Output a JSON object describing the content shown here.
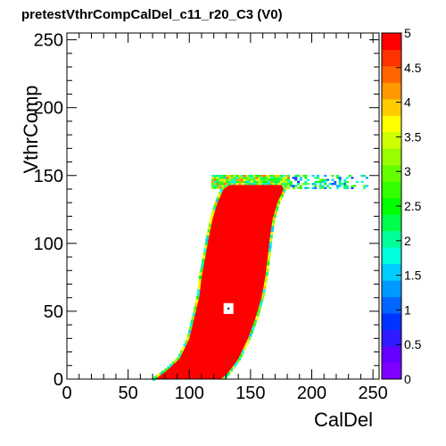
{
  "chart_data": {
    "type": "heatmap",
    "title": "pretestVthrCompCalDel_c11_r20_C3 (V0)",
    "xlabel": "CalDel",
    "ylabel": "VthrComp",
    "xlim": [
      0,
      255
    ],
    "ylim": [
      0,
      255
    ],
    "zlim": [
      0,
      5
    ],
    "x_ticks": [
      0,
      50,
      100,
      150,
      200,
      250
    ],
    "y_ticks": [
      0,
      50,
      100,
      150,
      200,
      250
    ],
    "z_ticks": [
      0,
      0.5,
      1,
      1.5,
      2,
      2.5,
      3,
      3.5,
      4,
      4.5,
      5
    ],
    "z_tick_labels": [
      "0",
      "0.5",
      "1",
      "1.5",
      "2",
      "2.5",
      "3",
      "3.5",
      "4",
      "4.5",
      "5"
    ],
    "colorbar_colors": [
      "#8000ff",
      "#6600ff",
      "#2e1cff",
      "#0033ff",
      "#0066ff",
      "#0099ff",
      "#00ccff",
      "#00ffdd",
      "#00ff99",
      "#00ff4d",
      "#00ff00",
      "#33ff00",
      "#66ff00",
      "#99ff00",
      "#ccff00",
      "#ffff00",
      "#ffcc00",
      "#ff9900",
      "#ff6600",
      "#ff3300",
      "#ff0000"
    ],
    "band_left_edge": [
      [
        72,
        0
      ],
      [
        80,
        5
      ],
      [
        92,
        15
      ],
      [
        100,
        30
      ],
      [
        104,
        45
      ],
      [
        108,
        60
      ],
      [
        110,
        75
      ],
      [
        113,
        90
      ],
      [
        116,
        105
      ],
      [
        119,
        118
      ],
      [
        123,
        130
      ],
      [
        128,
        140
      ],
      [
        133,
        143
      ],
      [
        175,
        143
      ]
    ],
    "band_right_edge": [
      [
        175,
        143
      ],
      [
        177,
        140
      ],
      [
        172,
        130
      ],
      [
        168,
        118
      ],
      [
        166,
        105
      ],
      [
        164,
        90
      ],
      [
        162,
        75
      ],
      [
        159,
        60
      ],
      [
        154,
        45
      ],
      [
        148,
        30
      ],
      [
        140,
        15
      ],
      [
        132,
        5
      ],
      [
        126,
        0
      ]
    ],
    "band_value": 5,
    "plateau": {
      "x": [
        118,
        245
      ],
      "y": [
        140,
        150
      ]
    },
    "hole": {
      "x": [
        128,
        136
      ],
      "y": [
        48,
        56
      ]
    }
  }
}
